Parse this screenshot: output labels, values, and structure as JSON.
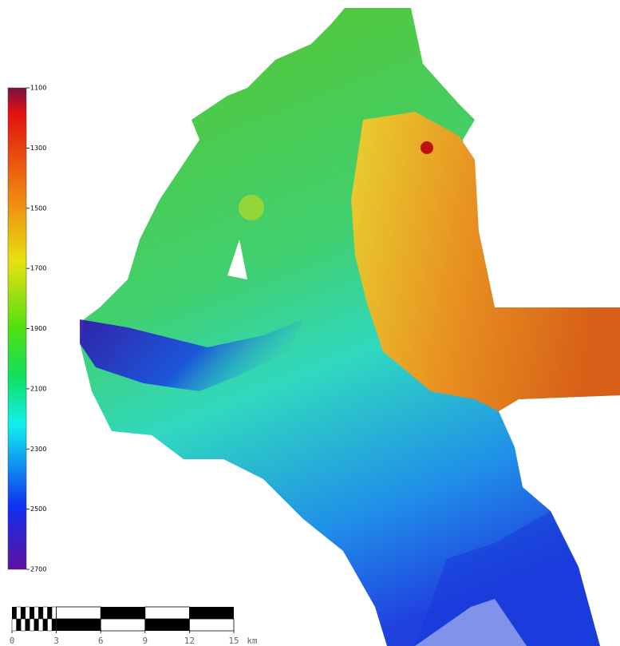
{
  "colorbar": {
    "lim": [
      1100,
      2700
    ],
    "ticks": [
      1100,
      1300,
      1500,
      1700,
      1900,
      2100,
      2300,
      2500,
      2700
    ]
  },
  "scale_bar": {
    "lim": [
      0,
      15
    ],
    "ticks": [
      0,
      3,
      6,
      9,
      12,
      15
    ],
    "unit": "km"
  }
}
